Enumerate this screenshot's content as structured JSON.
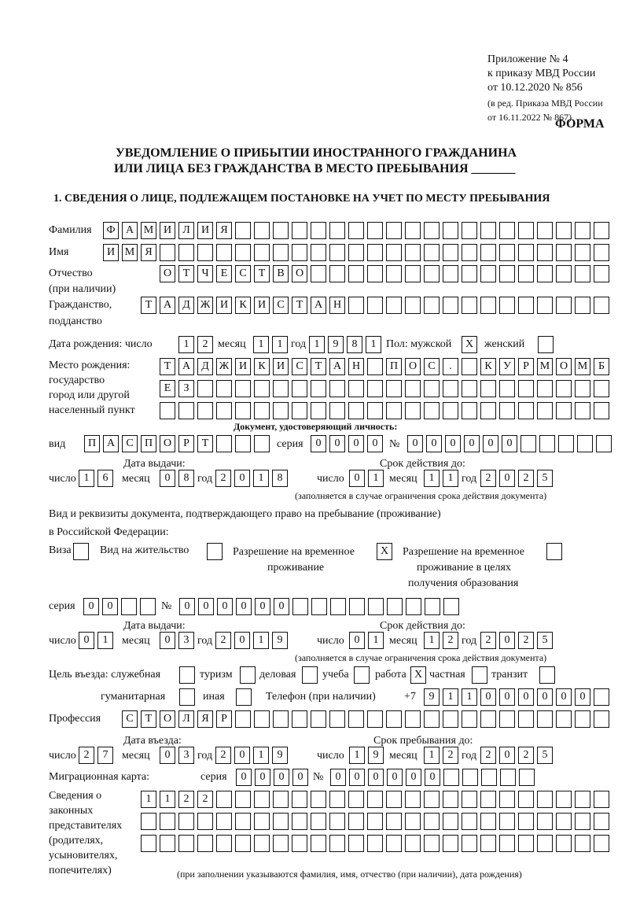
{
  "header": {
    "appendix": "Приложение № 4",
    "order": "к приказу МВД России",
    "order_date": "от 10.12.2020 № 856",
    "edition": "(в ред. Приказа МВД России",
    "edition_date": "от 16.11.2022 № 867)",
    "form_label": "ФОРМА",
    "title_line1": "УВЕДОМЛЕНИЕ О ПРИБЫТИИ ИНОСТРАННОГО ГРАЖДАНИНА",
    "title_line2": "ИЛИ ЛИЦА БЕЗ ГРАЖДАНСТВА В МЕСТО ПРЕБЫВАНИЯ _______",
    "section1": "1. СВЕДЕНИЯ О ЛИЦЕ, ПОДЛЕЖАЩЕМ ПОСТАНОВКЕ НА УЧЕТ ПО МЕСТУ ПРЕБЫВАНИЯ"
  },
  "labels": {
    "surname": "Фамилия",
    "name": "Имя",
    "patronymic": "Отчество",
    "patronymic_note": "(при наличии)",
    "citizenship": "Гражданство,",
    "citizenship2": "подданство",
    "birth_date": "Дата рождения:   число",
    "month": "месяц",
    "year": "год",
    "day": "число",
    "sex": "Пол: мужской",
    "female": "женский",
    "birth_place1": "Место рождения:",
    "birth_place2": "государство",
    "birth_place3": "город или другой",
    "birth_place4": "населенный пункт",
    "id_doc": "Документ, удостоверяющий личность:",
    "kind": "вид",
    "series": "серия",
    "number": "№",
    "issue_date": "Дата выдачи:",
    "valid_until": "Срок действия до:",
    "validity_note": "(заполняется в случае ограничения срока действия документа)",
    "right_doc1": "Вид и реквизиты документа, подтверждающего право на пребывание (проживание)",
    "right_doc2": "в Российской Федерации:",
    "visa": "Виза",
    "residence": "Вид на жительство",
    "temp1": "Разрешение на временное",
    "temp2": "проживание",
    "edu1": "Разрешение на временное",
    "edu2": "проживание в целях",
    "edu3": "получения образования",
    "purpose": "Цель въезда: служебная",
    "tourism": "туризм",
    "business": "деловая",
    "study": "учеба",
    "work": "работа",
    "private": "частная",
    "transit": "транзит",
    "humanitarian": "гуманитарная",
    "other": "иная",
    "phone": "Телефон (при наличии)",
    "phone_prefix": "+7",
    "profession": "Профессия",
    "entry_date": "Дата въезда:",
    "stay_until": "Срок пребывания до:",
    "migration_card": "Миграционная карта:",
    "reps1": "Сведения о",
    "reps2": "законных",
    "reps3": "представителях",
    "reps4": "(родителях,",
    "reps5": "усыновителях,",
    "reps6": "попечителях)",
    "reps_note": "(при заполнении указываются фамилия, имя, отчество (при наличии), дата рождения)"
  },
  "fields": {
    "surname": "ФАМИЛИЯ",
    "name": "ИМЯ",
    "patronymic": "ОТЧЕСТВО",
    "citizenship": "ТАДЖИКИСТАН",
    "birth_day": "12",
    "birth_month": "11",
    "birth_year": "1981",
    "sex_male": "X",
    "sex_female": "",
    "birth_place_row1": "ТАДЖИКИСТАН ПОС. КУРМОМБ",
    "birth_place_row2": "ЕЗ",
    "birth_place_row3": "",
    "doc_kind": "ПАСПОРТ",
    "doc_series": "0000",
    "doc_number": "000000",
    "doc_issue_day": "16",
    "doc_issue_month": "08",
    "doc_issue_year": "2018",
    "doc_valid_day": "01",
    "doc_valid_month": "11",
    "doc_valid_year": "2025",
    "visa": "",
    "residence_permit": "",
    "temp_residence": "X",
    "temp_residence_edu": "",
    "right_series": "00",
    "right_number": "000000",
    "right_issue_day": "01",
    "right_issue_month": "03",
    "right_issue_year": "2019",
    "right_valid_day": "01",
    "right_valid_month": "12",
    "right_valid_year": "2025",
    "purpose_official": "",
    "purpose_tourism": "",
    "purpose_business": "",
    "purpose_study": "",
    "purpose_work": "X",
    "purpose_private": "",
    "purpose_transit": "",
    "purpose_humanitarian": "",
    "purpose_other": "",
    "phone": "911000000",
    "profession": "СТОЛЯР",
    "entry_day": "27",
    "entry_month": "03",
    "entry_year": "2019",
    "stay_day": "19",
    "stay_month": "12",
    "stay_year": "2025",
    "mc_series": "0000",
    "mc_number": "000000",
    "reps_row1": "1122",
    "reps_row2": "",
    "reps_row3": ""
  }
}
